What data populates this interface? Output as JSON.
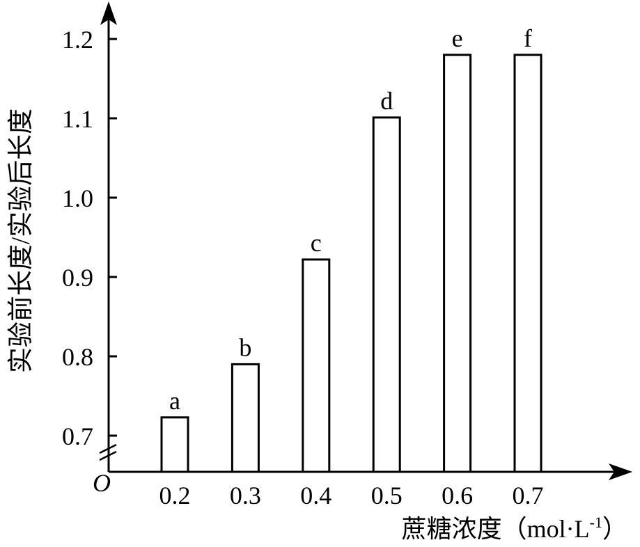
{
  "chart_data": {
    "type": "bar",
    "categories": [
      "0.2",
      "0.3",
      "0.4",
      "0.5",
      "0.6",
      "0.7"
    ],
    "values": [
      0.723,
      0.79,
      0.922,
      1.101,
      1.18,
      1.18
    ],
    "bar_labels": [
      "a",
      "b",
      "c",
      "d",
      "e",
      "f"
    ],
    "title": "",
    "xlabel": "蔗糖浓度（mol·L",
    "xlabel_sup": "-1",
    "xlabel_close": "）",
    "ylabel": "实验前长度/实验后长度",
    "origin_label": "O",
    "ylim": [
      0.7,
      1.2
    ],
    "yticks": [
      "0.7",
      "0.8",
      "0.9",
      "1.0",
      "1.1",
      "1.2"
    ],
    "axis_break": true,
    "grid": false,
    "legend": "none"
  }
}
